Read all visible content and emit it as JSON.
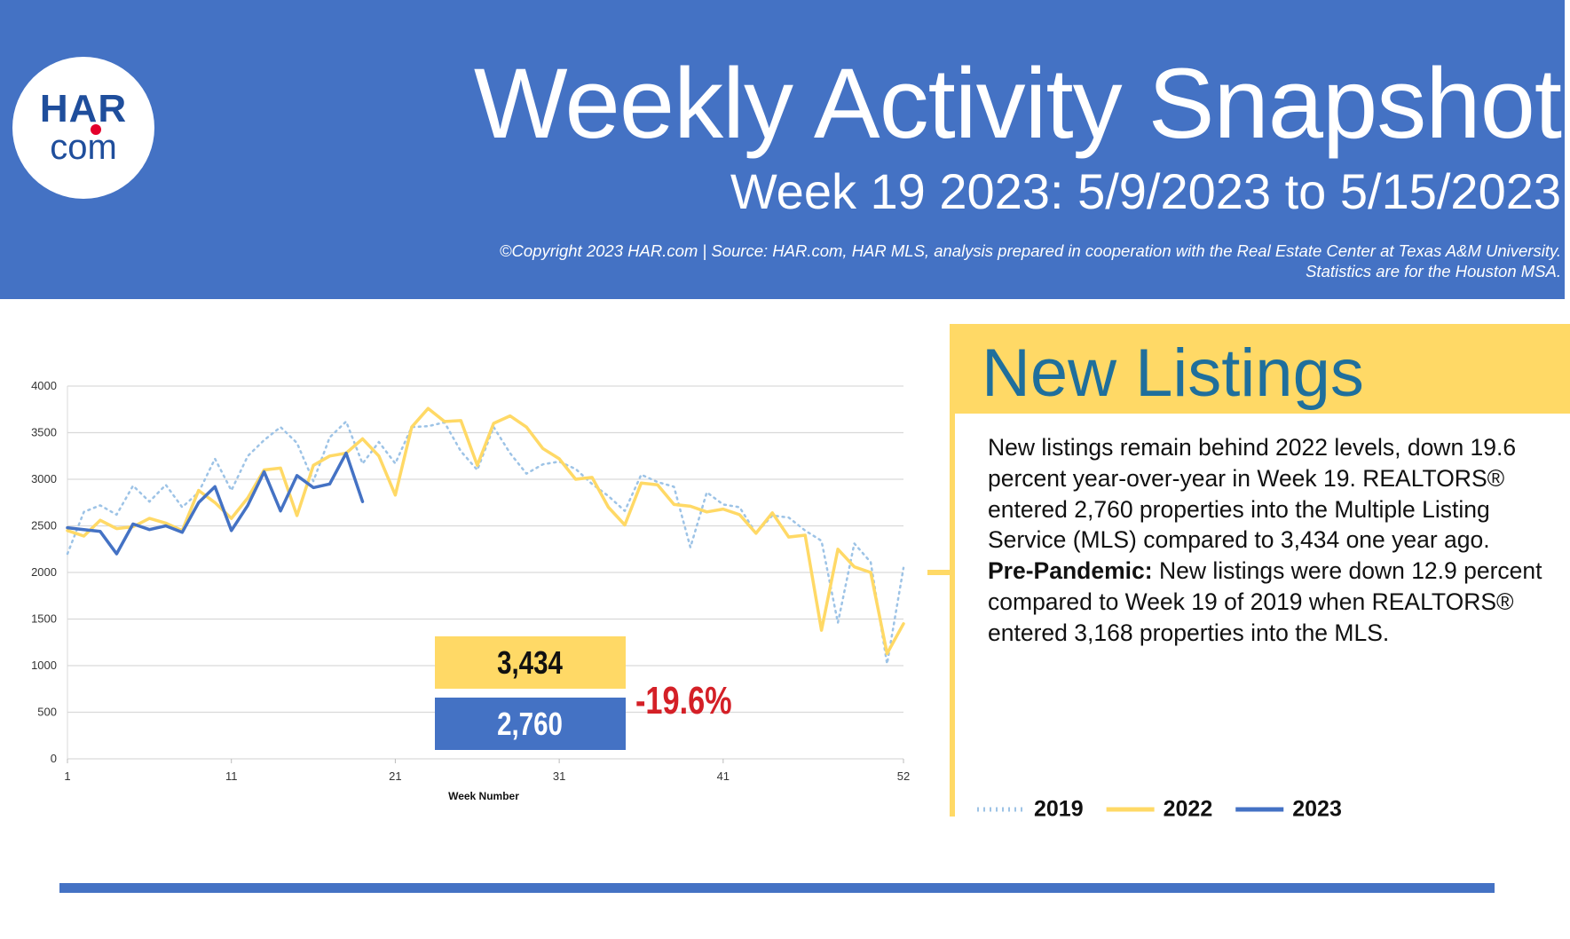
{
  "header": {
    "title": "Weekly Activity Snapshot",
    "subtitle": "Week 19 2023: 5/9/2023 to 5/15/2023",
    "copyright": "©Copyright 2023 HAR.com  |  Source: HAR.com, HAR MLS, analysis prepared in cooperation with the Real Estate Center at Texas A&M University.",
    "note": "Statistics are for the Houston MSA."
  },
  "logo": {
    "top": "HAR",
    "bottom": "com"
  },
  "chart_data": {
    "type": "line",
    "xlabel": "Week Number",
    "x": [
      1,
      2,
      3,
      4,
      5,
      6,
      7,
      8,
      9,
      10,
      11,
      12,
      13,
      14,
      15,
      16,
      17,
      18,
      19,
      20,
      21,
      22,
      23,
      24,
      25,
      26,
      27,
      28,
      29,
      30,
      31,
      32,
      33,
      34,
      35,
      36,
      37,
      38,
      39,
      40,
      41,
      42,
      43,
      44,
      45,
      46,
      47,
      48,
      49,
      50,
      51,
      52
    ],
    "xlim": [
      1,
      52
    ],
    "xticks": [
      1,
      11,
      21,
      31,
      41,
      52
    ],
    "ylim": [
      0,
      4000
    ],
    "yticks": [
      0,
      500,
      1000,
      1500,
      2000,
      2500,
      3000,
      3500,
      4000
    ],
    "grid": true,
    "series": [
      {
        "name": "2019",
        "color": "#9dc3e6",
        "style": "dotted",
        "values": [
          2200,
          2650,
          2720,
          2620,
          2930,
          2760,
          2940,
          2700,
          2860,
          3220,
          2880,
          3250,
          3420,
          3560,
          3390,
          2980,
          3450,
          3620,
          3168,
          3400,
          3170,
          3560,
          3570,
          3610,
          3300,
          3100,
          3560,
          3280,
          3060,
          3160,
          3190,
          3110,
          2950,
          2820,
          2660,
          3050,
          2970,
          2920,
          2270,
          2860,
          2730,
          2700,
          2420,
          2610,
          2590,
          2450,
          2340,
          1460,
          2310,
          2110,
          1020,
          2050
        ]
      },
      {
        "name": "2022",
        "color": "#ffd966",
        "style": "solid",
        "values": [
          2450,
          2390,
          2560,
          2470,
          2490,
          2580,
          2530,
          2450,
          2880,
          2750,
          2580,
          2800,
          3100,
          3120,
          2610,
          3150,
          3250,
          3280,
          3434,
          3250,
          2830,
          3560,
          3760,
          3620,
          3630,
          3150,
          3600,
          3680,
          3560,
          3330,
          3220,
          3000,
          3020,
          2700,
          2510,
          2960,
          2940,
          2730,
          2710,
          2650,
          2680,
          2620,
          2420,
          2640,
          2380,
          2400,
          1380,
          2250,
          2060,
          2000,
          1130,
          1450
        ]
      },
      {
        "name": "2023",
        "color": "#4472c4",
        "style": "solid",
        "values": [
          2480,
          2460,
          2440,
          2200,
          2520,
          2460,
          2500,
          2430,
          2750,
          2920,
          2450,
          2720,
          3080,
          2660,
          3040,
          2910,
          2950,
          3280,
          2760,
          null,
          null,
          null,
          null,
          null,
          null,
          null,
          null,
          null,
          null,
          null,
          null,
          null,
          null,
          null,
          null,
          null,
          null,
          null,
          null,
          null,
          null,
          null,
          null,
          null,
          null,
          null,
          null,
          null,
          null,
          null,
          null,
          null
        ]
      }
    ],
    "callout": {
      "values": [
        3434,
        2760
      ],
      "value_labels": [
        "3,434",
        "2,760"
      ],
      "colors": [
        "#ffd966",
        "#4472c4"
      ],
      "change": "-19.6%"
    }
  },
  "panel": {
    "title": "New Listings",
    "paragraph": "New listings remain behind 2022 levels, down 19.6 percent year-over-year in Week 19. REALTORS® entered 2,760 properties into the Multiple Listing Service (MLS) compared to 3,434 one year ago.",
    "lead": "Pre-Pandemic:",
    "text": " New listings were down 12.9 percent compared to Week 19 of 2019 when REALTORS® entered 3,168 properties into the MLS."
  }
}
